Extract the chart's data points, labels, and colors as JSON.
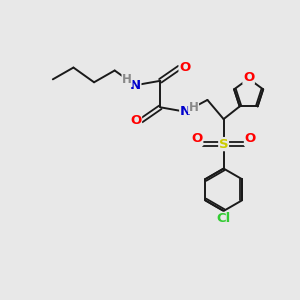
{
  "background_color": "#e8e8e8",
  "bond_color": "#1a1a1a",
  "atom_colors": {
    "N": "#0000cc",
    "O": "#ff0000",
    "S": "#cccc00",
    "Cl": "#33cc33",
    "H": "#888888",
    "C": "#1a1a1a"
  },
  "font_size_atoms": 9.5,
  "font_size_H": 8.5,
  "figsize": [
    3.0,
    3.0
  ],
  "dpi": 100
}
